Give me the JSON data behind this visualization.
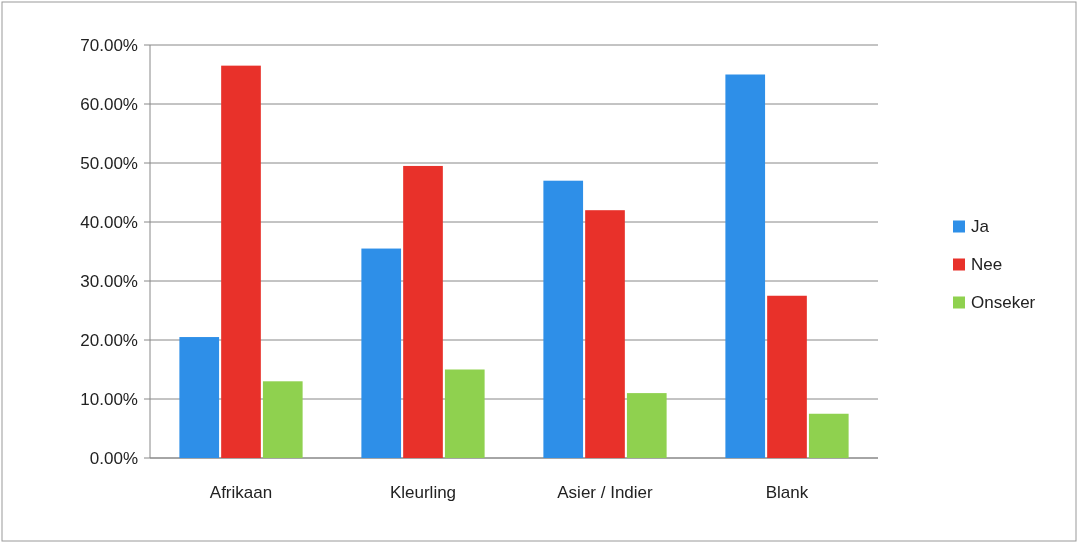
{
  "chart_data": {
    "type": "bar",
    "categories": [
      "Afrikaan",
      "Kleurling",
      "Asier / Indier",
      "Blank"
    ],
    "series": [
      {
        "name": "Ja",
        "color": "#2e8fe8",
        "values": [
          20.5,
          35.5,
          47,
          65
        ]
      },
      {
        "name": "Nee",
        "color": "#e8312a",
        "values": [
          66.5,
          49.5,
          42,
          27.5
        ]
      },
      {
        "name": "Onseker",
        "color": "#8fd14f",
        "values": [
          13,
          15,
          11,
          7.5
        ]
      }
    ],
    "ylim": [
      0,
      70
    ],
    "yticks": [
      {
        "value": 0,
        "label": "0.00%"
      },
      {
        "value": 10,
        "label": "10.00%"
      },
      {
        "value": 20,
        "label": "20.00%"
      },
      {
        "value": 30,
        "label": "30.00%"
      },
      {
        "value": 40,
        "label": "40.00%"
      },
      {
        "value": 50,
        "label": "50.00%"
      },
      {
        "value": 60,
        "label": "60.00%"
      },
      {
        "value": 70,
        "label": "70.00%"
      }
    ],
    "grid": "y",
    "legend": "right"
  }
}
